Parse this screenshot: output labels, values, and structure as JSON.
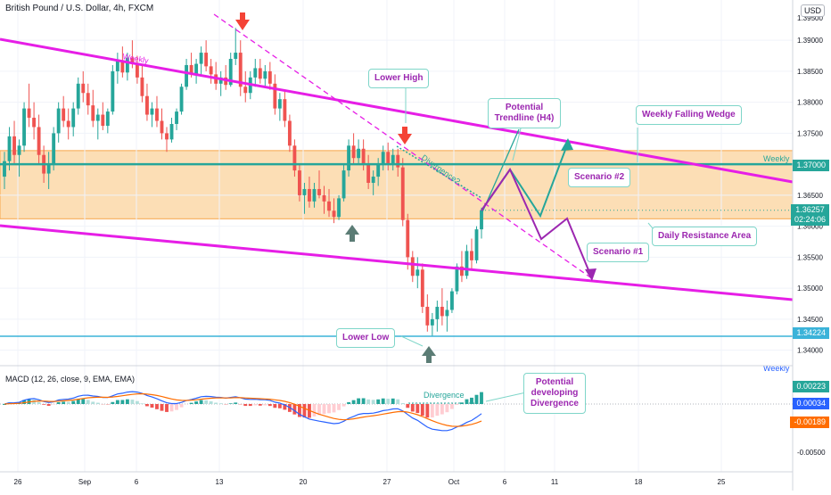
{
  "header": {
    "title": "British Pound / U.S. Dollar, 4h, FXCM",
    "currency_button": "USD",
    "indicator": "MACD (12, 26, close, 9, EMA, EMA)"
  },
  "price_axis": {
    "ticks": [
      "1.39000",
      "1.38500",
      "1.38000",
      "1.37500",
      "1.37000",
      "1.36500",
      "1.36000",
      "1.35500",
      "1.35000",
      "1.34500",
      "1.34000"
    ],
    "top_tick_partial": "1.39500",
    "current_price": "1.36257",
    "countdown": "02:24:06",
    "weekly_level": "1.37000",
    "low_level": "1.34224"
  },
  "macd_axis": {
    "ticks": [
      "-0.00500"
    ],
    "values": [
      "0.00223",
      "0.00034",
      "-0.00189"
    ]
  },
  "time_axis": [
    "26",
    "Sep",
    "6",
    "13",
    "20",
    "27",
    "Oct",
    "6",
    "11",
    "18",
    "25"
  ],
  "annotations": {
    "weekly_top": "Weekly",
    "weekly_right": "Weekly",
    "weekly_bottom": "Weekly",
    "lower_high": "Lower High",
    "lower_low": "Lower Low",
    "potential_trendline": "Potential Trendline (H4)",
    "falling_wedge": "Weekly Falling Wedge",
    "scenario2": "Scenario #2",
    "scenario1": "Scenario #1",
    "daily_resistance": "Daily Resistance Area",
    "divergence_price": "Divergence?",
    "divergence_macd": "Divergence",
    "potential_divergence": "Potential developing Divergence"
  },
  "colors": {
    "bull": "#26a69a",
    "bear": "#ef5350",
    "wedge": "#e61ee6",
    "zone": "#fcd8a8",
    "zone_border": "#f7a64a",
    "weekly_line": "#26a69a",
    "low_line": "#3bb3d9",
    "macd_line": "#2962ff",
    "signal_line": "#ff6d00",
    "annotation_purple": "#9c27b0",
    "arrow_red": "#f44336",
    "arrow_grey": "#5b7c75"
  },
  "chart_data": {
    "type": "candlestick",
    "title": "British Pound / U.S. Dollar, 4h, FXCM",
    "ylim": [
      1.3375,
      1.3965
    ],
    "reference_levels": {
      "weekly": 1.37,
      "lower_low": 1.34224,
      "current": 1.36257
    },
    "resistance_zone": [
      1.3612,
      1.3722
    ],
    "candles": [
      [
        1.368,
        1.372,
        1.366,
        1.3705
      ],
      [
        1.3705,
        1.376,
        1.369,
        1.3745
      ],
      [
        1.3745,
        1.377,
        1.37,
        1.3715
      ],
      [
        1.3715,
        1.374,
        1.368,
        1.373
      ],
      [
        1.373,
        1.38,
        1.372,
        1.379
      ],
      [
        1.379,
        1.383,
        1.376,
        1.3775
      ],
      [
        1.3775,
        1.38,
        1.374,
        1.376
      ],
      [
        1.376,
        1.378,
        1.37,
        1.3715
      ],
      [
        1.3715,
        1.373,
        1.367,
        1.3685
      ],
      [
        1.3685,
        1.372,
        1.366,
        1.37
      ],
      [
        1.37,
        1.376,
        1.369,
        1.375
      ],
      [
        1.375,
        1.38,
        1.3735,
        1.379
      ],
      [
        1.379,
        1.381,
        1.376,
        1.377
      ],
      [
        1.377,
        1.379,
        1.374,
        1.376
      ],
      [
        1.376,
        1.38,
        1.3745,
        1.379
      ],
      [
        1.379,
        1.384,
        1.378,
        1.383
      ],
      [
        1.383,
        1.385,
        1.38,
        1.3815
      ],
      [
        1.3815,
        1.383,
        1.378,
        1.3795
      ],
      [
        1.3795,
        1.382,
        1.376,
        1.377
      ],
      [
        1.377,
        1.379,
        1.374,
        1.378
      ],
      [
        1.378,
        1.38,
        1.3755,
        1.3762
      ],
      [
        1.3762,
        1.379,
        1.375,
        1.3785
      ],
      [
        1.3785,
        1.386,
        1.378,
        1.385
      ],
      [
        1.385,
        1.388,
        1.383,
        1.3868
      ],
      [
        1.3868,
        1.389,
        1.384,
        1.3848
      ],
      [
        1.3848,
        1.388,
        1.3835,
        1.3872
      ],
      [
        1.3872,
        1.39,
        1.3855,
        1.3862
      ],
      [
        1.3862,
        1.3875,
        1.383,
        1.384
      ],
      [
        1.384,
        1.386,
        1.38,
        1.381
      ],
      [
        1.381,
        1.383,
        1.377,
        1.378
      ],
      [
        1.378,
        1.38,
        1.376,
        1.379
      ],
      [
        1.379,
        1.381,
        1.376,
        1.377
      ],
      [
        1.377,
        1.379,
        1.374,
        1.375
      ],
      [
        1.375,
        1.376,
        1.372,
        1.374
      ],
      [
        1.374,
        1.3775,
        1.3735,
        1.3765
      ],
      [
        1.3765,
        1.379,
        1.3755,
        1.3785
      ],
      [
        1.3785,
        1.383,
        1.378,
        1.3825
      ],
      [
        1.3825,
        1.387,
        1.382,
        1.386
      ],
      [
        1.386,
        1.388,
        1.384,
        1.3845
      ],
      [
        1.3845,
        1.387,
        1.383,
        1.3862
      ],
      [
        1.3862,
        1.389,
        1.3845,
        1.388
      ],
      [
        1.388,
        1.39,
        1.385,
        1.3858
      ],
      [
        1.3858,
        1.387,
        1.383,
        1.3845
      ],
      [
        1.3845,
        1.3865,
        1.382,
        1.383
      ],
      [
        1.383,
        1.385,
        1.381,
        1.384
      ],
      [
        1.384,
        1.386,
        1.382,
        1.3828
      ],
      [
        1.3828,
        1.388,
        1.3825,
        1.387
      ],
      [
        1.387,
        1.392,
        1.386,
        1.388
      ],
      [
        1.388,
        1.39,
        1.381,
        1.3825
      ],
      [
        1.3825,
        1.385,
        1.38,
        1.3815
      ],
      [
        1.3815,
        1.385,
        1.3805,
        1.384
      ],
      [
        1.384,
        1.387,
        1.3825,
        1.3855
      ],
      [
        1.3855,
        1.387,
        1.383,
        1.3838
      ],
      [
        1.3838,
        1.386,
        1.3825,
        1.385
      ],
      [
        1.385,
        1.3865,
        1.382,
        1.383
      ],
      [
        1.383,
        1.3845,
        1.378,
        1.379
      ],
      [
        1.379,
        1.3815,
        1.377,
        1.3805
      ],
      [
        1.3805,
        1.382,
        1.376,
        1.377
      ],
      [
        1.377,
        1.378,
        1.372,
        1.373
      ],
      [
        1.373,
        1.374,
        1.368,
        1.369
      ],
      [
        1.369,
        1.37,
        1.364,
        1.365
      ],
      [
        1.365,
        1.367,
        1.362,
        1.366
      ],
      [
        1.366,
        1.368,
        1.363,
        1.364
      ],
      [
        1.364,
        1.367,
        1.363,
        1.366
      ],
      [
        1.366,
        1.369,
        1.3645,
        1.365
      ],
      [
        1.365,
        1.3665,
        1.362,
        1.364
      ],
      [
        1.364,
        1.366,
        1.3615,
        1.3625
      ],
      [
        1.3625,
        1.3645,
        1.3605,
        1.3615
      ],
      [
        1.3615,
        1.365,
        1.361,
        1.3645
      ],
      [
        1.3645,
        1.37,
        1.364,
        1.369
      ],
      [
        1.369,
        1.374,
        1.368,
        1.373
      ],
      [
        1.373,
        1.375,
        1.37,
        1.371
      ],
      [
        1.371,
        1.374,
        1.37,
        1.3725
      ],
      [
        1.3725,
        1.374,
        1.369,
        1.37
      ],
      [
        1.37,
        1.3715,
        1.366,
        1.367
      ],
      [
        1.367,
        1.369,
        1.365,
        1.368
      ],
      [
        1.368,
        1.371,
        1.3665,
        1.37
      ],
      [
        1.37,
        1.373,
        1.369,
        1.372
      ],
      [
        1.372,
        1.3735,
        1.369,
        1.37
      ],
      [
        1.37,
        1.3725,
        1.369,
        1.3715
      ],
      [
        1.3715,
        1.3725,
        1.368,
        1.3695
      ],
      [
        1.3695,
        1.371,
        1.36,
        1.361
      ],
      [
        1.361,
        1.362,
        1.353,
        1.355
      ],
      [
        1.355,
        1.356,
        1.351,
        1.352
      ],
      [
        1.352,
        1.355,
        1.35,
        1.353
      ],
      [
        1.353,
        1.354,
        1.346,
        1.347
      ],
      [
        1.347,
        1.349,
        1.343,
        1.344
      ],
      [
        1.344,
        1.346,
        1.3422,
        1.345
      ],
      [
        1.345,
        1.348,
        1.343,
        1.347
      ],
      [
        1.347,
        1.35,
        1.344,
        1.3455
      ],
      [
        1.3455,
        1.348,
        1.343,
        1.3465
      ],
      [
        1.3465,
        1.35,
        1.346,
        1.3495
      ],
      [
        1.3495,
        1.354,
        1.349,
        1.3535
      ],
      [
        1.3535,
        1.356,
        1.351,
        1.352
      ],
      [
        1.352,
        1.357,
        1.3515,
        1.356
      ],
      [
        1.356,
        1.358,
        1.353,
        1.3545
      ],
      [
        1.3545,
        1.36,
        1.354,
        1.3595
      ],
      [
        1.3595,
        1.363,
        1.358,
        1.3626
      ]
    ]
  }
}
